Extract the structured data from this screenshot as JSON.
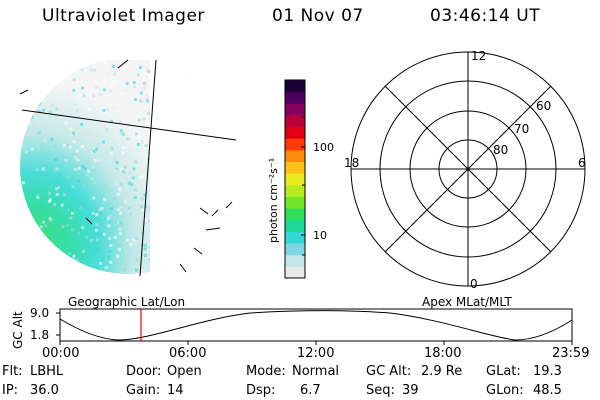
{
  "header": {
    "instrument": "Ultraviolet Imager",
    "date": "01 Nov 07",
    "time": "03:46:14 UT"
  },
  "colorbar": {
    "unit_label": "photon cm⁻²s⁻¹",
    "ticks": [
      "100",
      "10"
    ],
    "colors": [
      "#e8e8e8",
      "#c0e6e6",
      "#7fd6e6",
      "#33d9d4",
      "#1fd99a",
      "#2ee05a",
      "#6fe62a",
      "#b8ec1e",
      "#e8ec1e",
      "#ffc21a",
      "#ff8a0c",
      "#ff3a08",
      "#e00010",
      "#b8003a",
      "#88005e",
      "#4e0062",
      "#1a0038"
    ]
  },
  "polar_plot": {
    "mlt_labels": [
      "12",
      "18",
      "6",
      "0"
    ],
    "mlat_labels": [
      "60",
      "70",
      "80"
    ]
  },
  "altitude_panel": {
    "left_label": "Geographic Lat/Lon",
    "right_label": "Apex MLat/MLT",
    "axis_label": "GC Alt",
    "y_ticks": [
      "9.0",
      "1.8"
    ],
    "x_ticks": [
      "00:00",
      "06:00",
      "12:00",
      "18:00",
      "23:59"
    ],
    "marker_color": "#e00000"
  },
  "footer": {
    "row1": [
      {
        "label": "Flt:",
        "value": "LBHL"
      },
      {
        "label": "Door:",
        "value": "Open"
      },
      {
        "label": "Mode:",
        "value": "Normal"
      },
      {
        "label": "GC Alt:",
        "value": "2.9 Re"
      },
      {
        "label": "GLat:",
        "value": "19.3"
      }
    ],
    "row2": [
      {
        "label": "IP:",
        "value": "36.0"
      },
      {
        "label": "Gain:",
        "value": "14"
      },
      {
        "label": "Dsp:",
        "value": "6.7"
      },
      {
        "label": "Seq:",
        "value": "39"
      },
      {
        "label": "GLon:",
        "value": "48.5"
      }
    ]
  }
}
